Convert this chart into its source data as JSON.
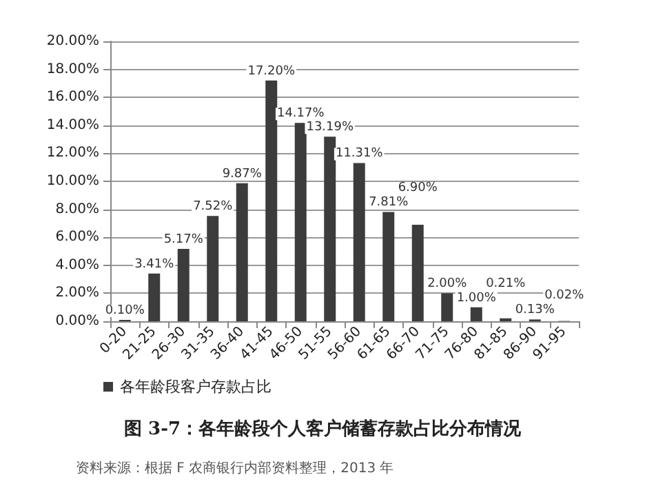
{
  "chart_data": {
    "type": "bar",
    "title": "图 3-7：各年龄段个人客户储蓄存款占比分布情况",
    "annotations": [
      "资料来源：根据 F 农商银行内部资料整理，2013 年"
    ],
    "categories": [
      "0-20",
      "21-25",
      "26-30",
      "31-35",
      "36-40",
      "41-45",
      "46-50",
      "51-55",
      "56-60",
      "61-65",
      "66-70",
      "71-75",
      "76-80",
      "81-85",
      "86-90",
      "91-95"
    ],
    "series": [
      {
        "name": "各年龄段客户存款占比",
        "color": "#3c3c3c",
        "values": [
          0.1,
          3.41,
          5.17,
          7.52,
          9.87,
          17.2,
          14.17,
          13.19,
          11.31,
          7.81,
          6.9,
          2.0,
          1.0,
          0.21,
          0.13,
          0.02
        ],
        "value_labels": [
          "0.10%",
          "3.41%",
          "5.17%",
          "7.52%",
          "9.87%",
          "17.20%",
          "14.17%",
          "13.19%",
          "11.31%",
          "7.81%",
          "6.90%",
          "2.00%",
          "1.00%",
          "0.21%",
          "0.13%",
          "0.02%"
        ]
      }
    ],
    "ylim": [
      0,
      20
    ],
    "yticks": [
      {
        "value": 0,
        "label": "0.00%"
      },
      {
        "value": 2,
        "label": "2.00%"
      },
      {
        "value": 4,
        "label": "4.00%"
      },
      {
        "value": 6,
        "label": "6.00%"
      },
      {
        "value": 8,
        "label": "8.00%"
      },
      {
        "value": 10,
        "label": "10.00%"
      },
      {
        "value": 12,
        "label": "12.00%"
      },
      {
        "value": 14,
        "label": "14.00%"
      },
      {
        "value": 16,
        "label": "16.00%"
      },
      {
        "value": 18,
        "label": "18.00%"
      },
      {
        "value": 20,
        "label": "20.00%"
      }
    ],
    "grid": "y",
    "legend": "bottom left"
  }
}
